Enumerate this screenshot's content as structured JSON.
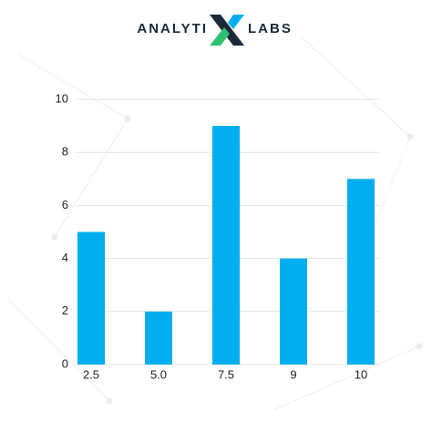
{
  "logo": {
    "left": "ANALYTI",
    "right": "LABS"
  },
  "chart_data": {
    "type": "bar",
    "categories": [
      "2.5",
      "5.0",
      "7.5",
      "9",
      "10"
    ],
    "values": [
      5,
      2,
      9,
      4,
      7
    ],
    "color": "#00aeef",
    "ylim": [
      0,
      10
    ],
    "yticks": [
      0,
      2,
      4,
      6,
      8,
      10
    ],
    "grid": true
  }
}
